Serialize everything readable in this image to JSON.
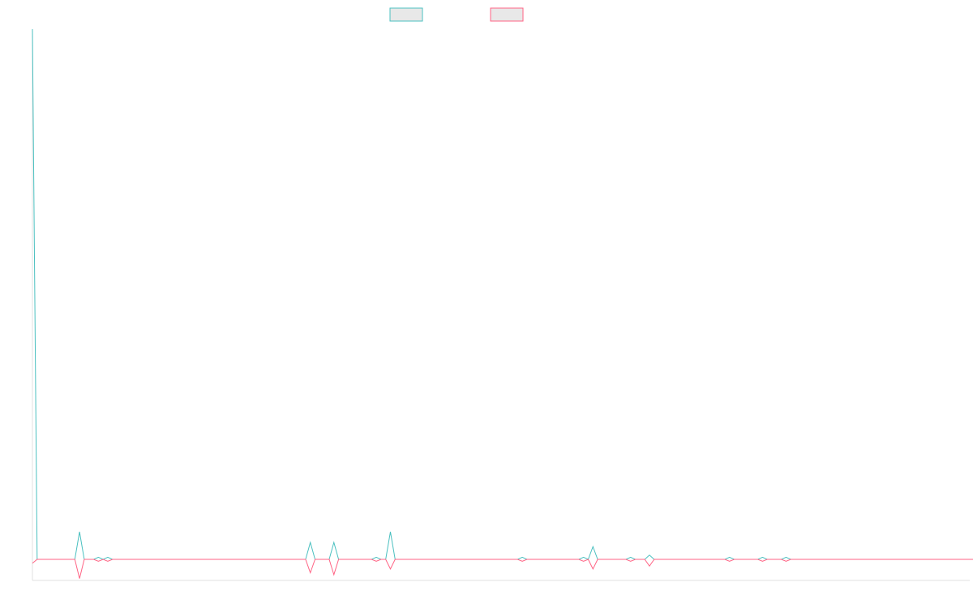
{
  "chart_data": {
    "type": "line",
    "title": "",
    "xlabel": "",
    "ylabel": "",
    "grid": false,
    "legend_placement": "top-center",
    "x_count": 200,
    "ylim": [
      -1.1,
      25
    ],
    "series": [
      {
        "color": "#4bc0c0",
        "fill": "#e8e8e8",
        "values": [
          25,
          0,
          0,
          0,
          0,
          0,
          0,
          0,
          0,
          0,
          1.3,
          0,
          0,
          0,
          0.1,
          0,
          0.1,
          0,
          0,
          0,
          0,
          0,
          0,
          0,
          0,
          0,
          0,
          0,
          0,
          0,
          0,
          0,
          0,
          0,
          0,
          0,
          0,
          0,
          0,
          0,
          0,
          0,
          0,
          0,
          0,
          0,
          0,
          0,
          0,
          0,
          0,
          0,
          0,
          0,
          0,
          0,
          0,
          0,
          0,
          0.8,
          0,
          0,
          0,
          0,
          0.8,
          0,
          0,
          0,
          0,
          0,
          0,
          0,
          0,
          0.1,
          0,
          0,
          1.3,
          0,
          0,
          0,
          0,
          0,
          0,
          0,
          0,
          0,
          0,
          0,
          0,
          0,
          0,
          0,
          0,
          0,
          0,
          0,
          0,
          0,
          0,
          0,
          0,
          0,
          0,
          0,
          0.1,
          0,
          0,
          0,
          0,
          0,
          0,
          0,
          0,
          0,
          0,
          0,
          0,
          0.1,
          0,
          0.6,
          0,
          0,
          0,
          0,
          0,
          0,
          0,
          0.1,
          0,
          0,
          0,
          0.2,
          0,
          0,
          0,
          0,
          0,
          0,
          0,
          0,
          0,
          0,
          0,
          0,
          0,
          0,
          0,
          0,
          0.1,
          0,
          0,
          0,
          0,
          0,
          0,
          0.1,
          0,
          0,
          0,
          0,
          0.1,
          0,
          0,
          0,
          0,
          0,
          0,
          0,
          0,
          0,
          0,
          0,
          0,
          0,
          0,
          0,
          0,
          0,
          0,
          0,
          0,
          0,
          0,
          0,
          0,
          0,
          0,
          0,
          0,
          0,
          0,
          0,
          0,
          0,
          0,
          0,
          0,
          0,
          0,
          0,
          0,
          0,
          0.1,
          0,
          0,
          0,
          0,
          0,
          0,
          0
        ]
      },
      {
        "color": "#ff6384",
        "fill": "#e8e8e8",
        "values": [
          -0.2,
          0,
          0,
          0,
          0,
          0,
          0,
          0,
          0,
          0,
          -1,
          0,
          0,
          0,
          -0.1,
          0,
          -0.1,
          0,
          0,
          0,
          0,
          0,
          0,
          0,
          0,
          0,
          0,
          0,
          0,
          0,
          0,
          0,
          0,
          0,
          0,
          0,
          0,
          0,
          0,
          0,
          0,
          0,
          0,
          0,
          0,
          0,
          0,
          0,
          0,
          0,
          0,
          0,
          0,
          0,
          0,
          0,
          0,
          0,
          0,
          -0.7,
          0,
          0,
          0,
          0,
          -0.8,
          0,
          0,
          0,
          0,
          0,
          0,
          0,
          0,
          -0.1,
          0,
          0,
          -0.5,
          0,
          0,
          0,
          0,
          0,
          0,
          0,
          0,
          0,
          0,
          0,
          0,
          0,
          0,
          0,
          0,
          0,
          0,
          0,
          0,
          0,
          0,
          0,
          0,
          0,
          0,
          0,
          -0.1,
          0,
          0,
          0,
          0,
          0,
          0,
          0,
          0,
          0,
          0,
          0,
          0,
          -0.1,
          0,
          -0.5,
          0,
          0,
          0,
          0,
          0,
          0,
          0,
          -0.1,
          0,
          0,
          0,
          -0.35,
          0,
          0,
          0,
          0,
          0,
          0,
          0,
          0,
          0,
          0,
          0,
          0,
          0,
          0,
          0,
          0,
          -0.1,
          0,
          0,
          0,
          0,
          0,
          0,
          -0.1,
          0,
          0,
          0,
          0,
          -0.1,
          0,
          0,
          0,
          0,
          0,
          0,
          0,
          0,
          0,
          0,
          0,
          0,
          0,
          0,
          0,
          0,
          0,
          0,
          0,
          0,
          0,
          0,
          0,
          0,
          0,
          0,
          0,
          0,
          0,
          0,
          0,
          0,
          0,
          0,
          0,
          0,
          0,
          0,
          0,
          0,
          0,
          -0.1,
          0,
          0,
          0,
          0,
          0,
          0,
          0
        ]
      }
    ]
  }
}
